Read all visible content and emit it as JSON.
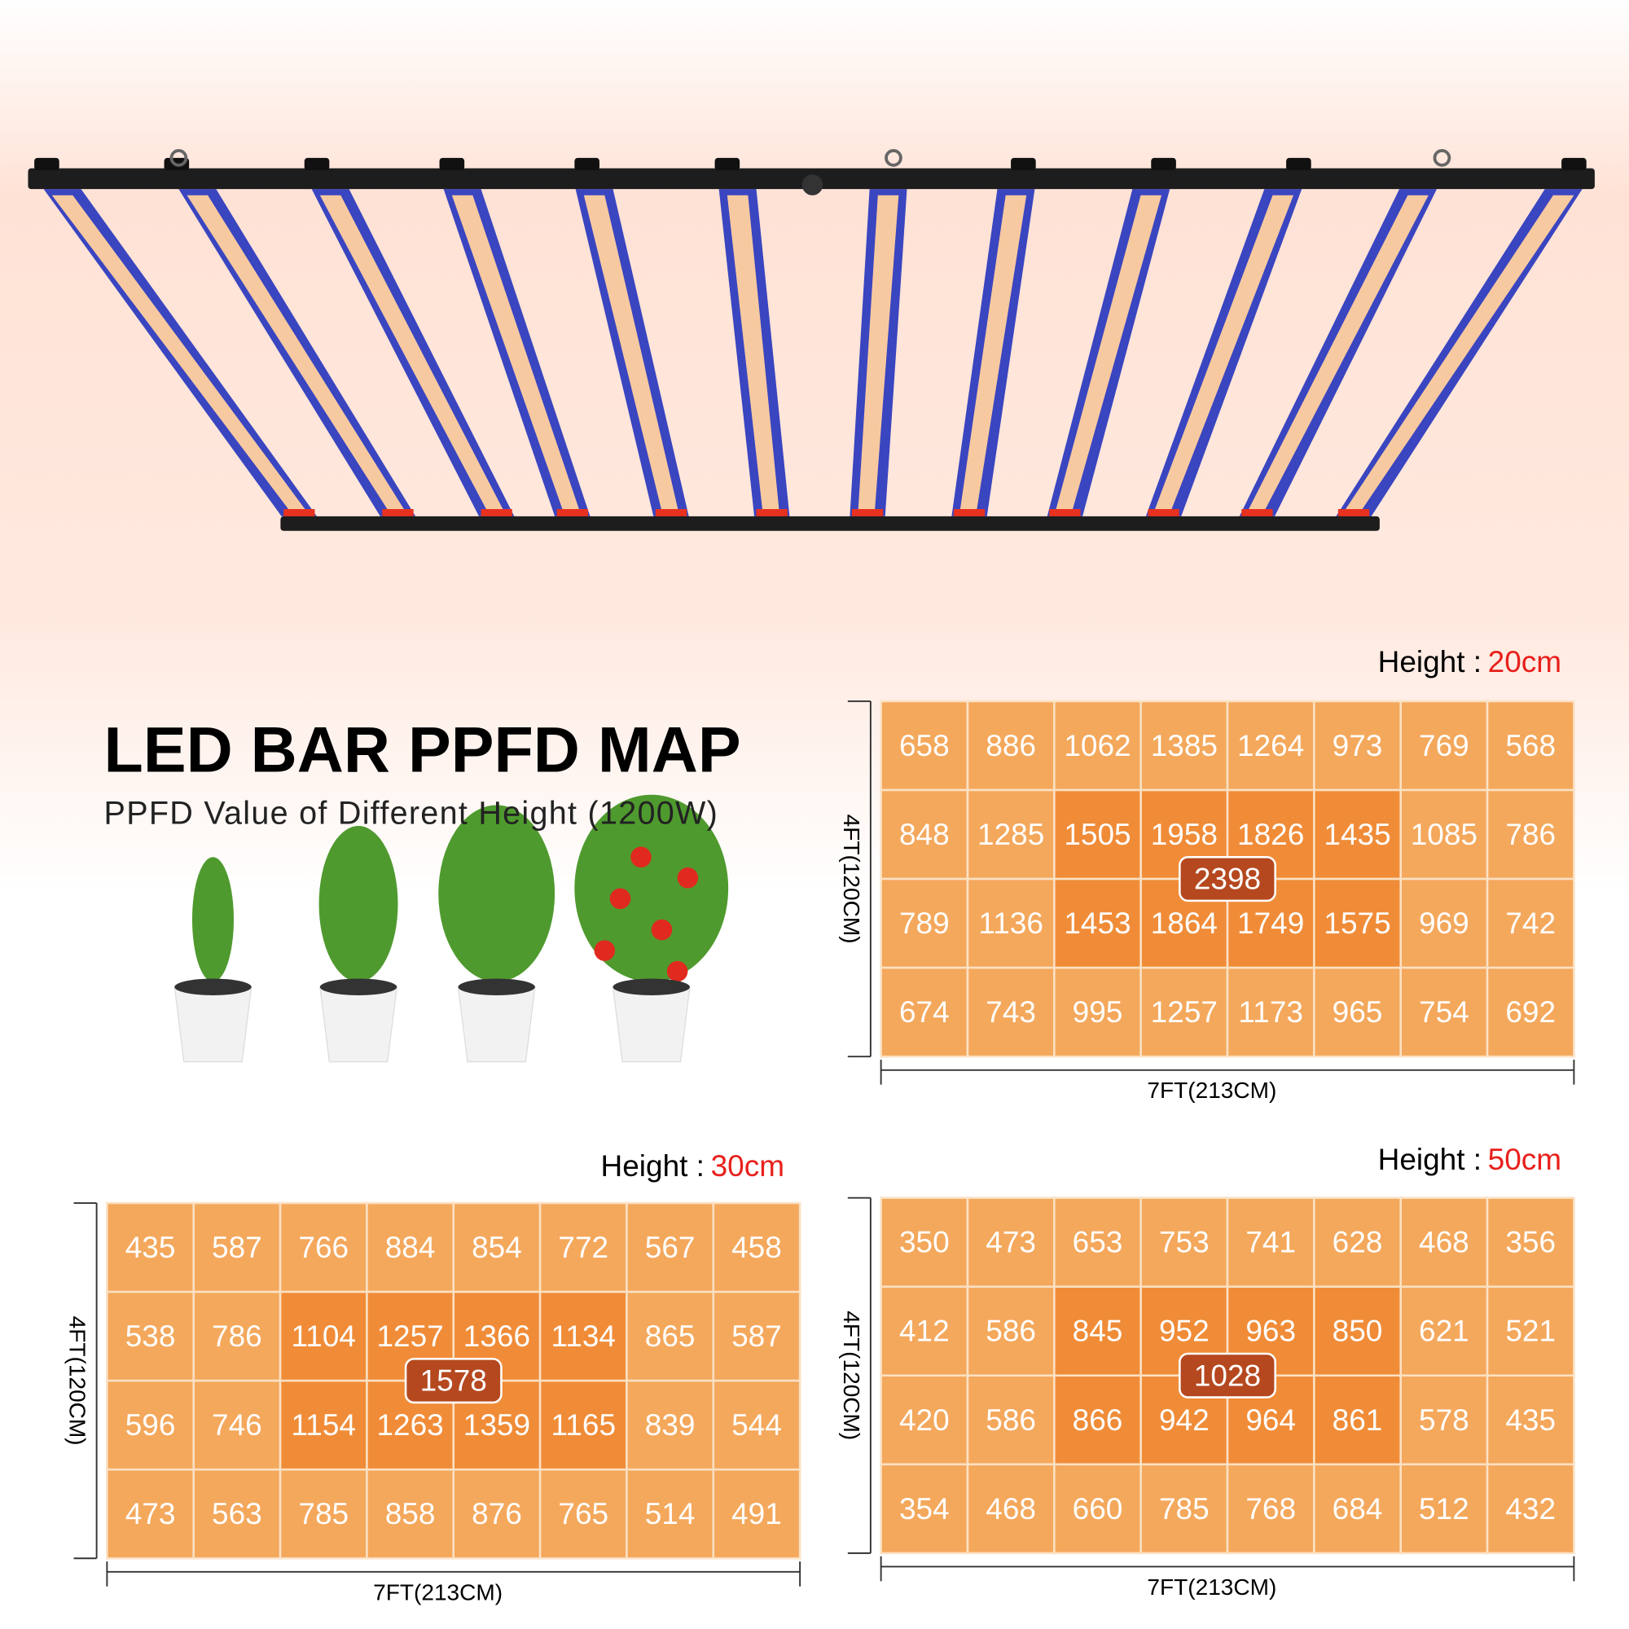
{
  "title": "LED BAR PPFD MAP",
  "subtitle": "PPFD Value of Different Height (1200W)",
  "cell_color": "#f4a85c",
  "highlight_color": "#f08c38",
  "badge_color": "#b5481f",
  "height_color": "#e8201c",
  "maps": [
    {
      "height_label": "Height :",
      "height": "20cm",
      "center": 2398,
      "width_label": "7FT(213CM)",
      "depth_label": "4FT(120CM)",
      "rows": [
        [
          658,
          886,
          1062,
          1385,
          1264,
          973,
          769,
          568
        ],
        [
          848,
          1285,
          1505,
          1958,
          1826,
          1435,
          1085,
          786
        ],
        [
          789,
          1136,
          1453,
          1864,
          1749,
          1575,
          969,
          742
        ],
        [
          674,
          743,
          995,
          1257,
          1173,
          965,
          754,
          692
        ]
      ]
    },
    {
      "height_label": "Height :",
      "height": "30cm",
      "center": 1578,
      "width_label": "7FT(213CM)",
      "depth_label": "4FT(120CM)",
      "rows": [
        [
          435,
          587,
          766,
          884,
          854,
          772,
          567,
          458
        ],
        [
          538,
          786,
          1104,
          1257,
          1366,
          1134,
          865,
          587
        ],
        [
          596,
          746,
          1154,
          1263,
          1359,
          1165,
          839,
          544
        ],
        [
          473,
          563,
          785,
          858,
          876,
          765,
          514,
          491
        ]
      ]
    },
    {
      "height_label": "Height :",
      "height": "50cm",
      "center": 1028,
      "width_label": "7FT(213CM)",
      "depth_label": "4FT(120CM)",
      "rows": [
        [
          350,
          473,
          653,
          753,
          741,
          628,
          468,
          356
        ],
        [
          412,
          586,
          845,
          952,
          963,
          850,
          621,
          521
        ],
        [
          420,
          586,
          866,
          942,
          964,
          861,
          578,
          435
        ],
        [
          354,
          468,
          660,
          785,
          768,
          684,
          512,
          432
        ]
      ]
    }
  ]
}
